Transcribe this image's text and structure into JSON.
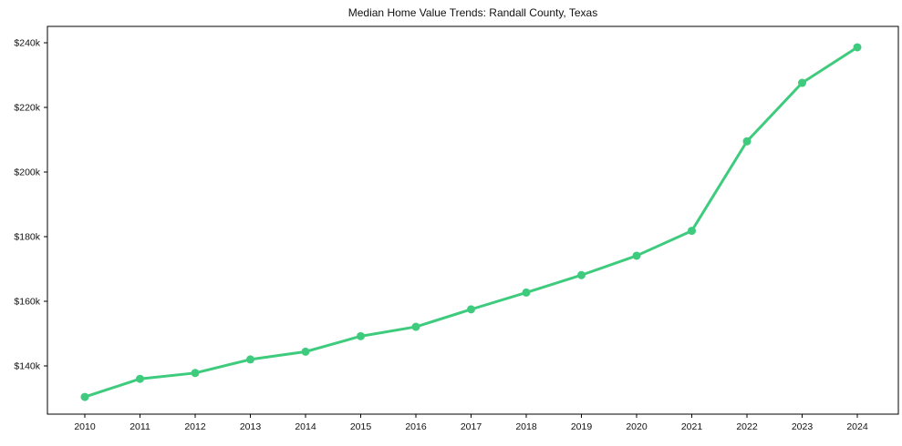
{
  "chart_data": {
    "type": "line",
    "title": "Median Home Value Trends: Randall County, Texas",
    "xlabel": "",
    "ylabel": "",
    "categories": [
      "2010",
      "2011",
      "2012",
      "2013",
      "2014",
      "2015",
      "2016",
      "2017",
      "2018",
      "2019",
      "2020",
      "2021",
      "2022",
      "2023",
      "2024"
    ],
    "values": [
      130400,
      136000,
      137800,
      142000,
      144400,
      149200,
      152100,
      157500,
      162700,
      168100,
      174100,
      181800,
      209500,
      227600,
      238600
    ],
    "y_ticks": [
      {
        "label": "$140k",
        "value": 140000
      },
      {
        "label": "$160k",
        "value": 160000
      },
      {
        "label": "$180k",
        "value": 180000
      },
      {
        "label": "$200k",
        "value": 200000
      },
      {
        "label": "$220k",
        "value": 220000
      },
      {
        "label": "$240k",
        "value": 240000
      }
    ],
    "ylim": [
      125400,
      245050
    ],
    "grid": false,
    "legend_position": "none",
    "line_color": "#3ecb7d",
    "marker_color": "#3ecb7d",
    "axis_color": "#000000",
    "text_color": "#111111",
    "background_color": "#ffffff"
  }
}
